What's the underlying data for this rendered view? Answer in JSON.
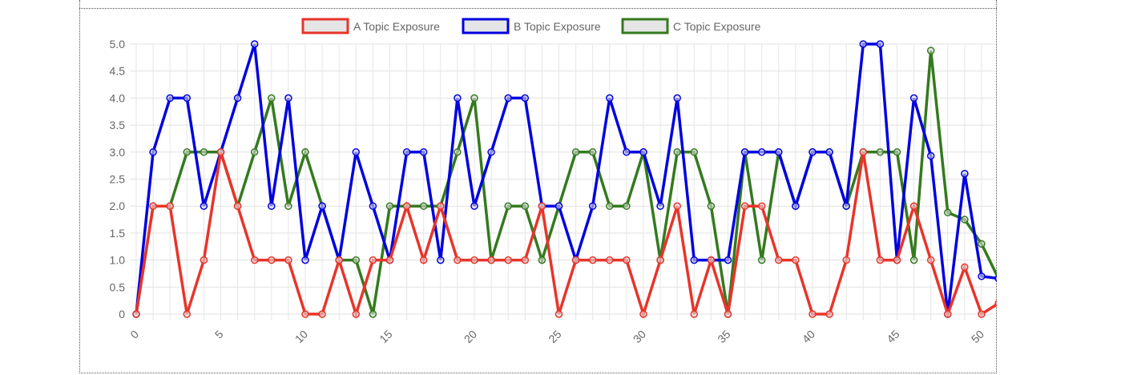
{
  "chart_data": {
    "type": "line",
    "title": "",
    "xlabel": "",
    "ylabel": "",
    "x": [
      0,
      1,
      2,
      3,
      4,
      5,
      6,
      7,
      8,
      9,
      10,
      11,
      12,
      13,
      14,
      15,
      16,
      17,
      18,
      19,
      20,
      21,
      22,
      23,
      24,
      25,
      26,
      27,
      28,
      29,
      30,
      31,
      32,
      33,
      34,
      35,
      36,
      37,
      38,
      39,
      40,
      41,
      42,
      43,
      44,
      45,
      46,
      47,
      48,
      49,
      50,
      51
    ],
    "xticks": [
      0,
      5,
      10,
      15,
      20,
      25,
      30,
      35,
      40,
      45,
      50
    ],
    "yticks": [
      0,
      0.5,
      1.0,
      1.5,
      2.0,
      2.5,
      3.0,
      3.5,
      4.0,
      4.5,
      5.0
    ],
    "ytick_labels": [
      "0",
      "0.5",
      "1.0",
      "1.5",
      "2.0",
      "2.5",
      "3.0",
      "3.5",
      "4.0",
      "4.5",
      "5.0"
    ],
    "xlim": [
      0,
      51
    ],
    "ylim": [
      0,
      5
    ],
    "grid": true,
    "legend_position": "top-center",
    "series": [
      {
        "name": "A Topic Exposure",
        "color": "#e8342a",
        "values": [
          0,
          2,
          2,
          0,
          1,
          3,
          2,
          1,
          1,
          1,
          0,
          0,
          1,
          0,
          1,
          1,
          2,
          1,
          2,
          1,
          1,
          1,
          1,
          1,
          2,
          0,
          1,
          1,
          1,
          1,
          0,
          1,
          2,
          0,
          1,
          0,
          2,
          2,
          1,
          1,
          0,
          0,
          1,
          3,
          1,
          1,
          2,
          1,
          0,
          0.87,
          0,
          0.2
        ]
      },
      {
        "name": "B Topic Exposure",
        "color": "#0000e0",
        "values": [
          0,
          3,
          4,
          4,
          2,
          3,
          4,
          5,
          2,
          4,
          1,
          2,
          1,
          3,
          2,
          1,
          3,
          3,
          1,
          4,
          2,
          3,
          4,
          4,
          2,
          2,
          1,
          2,
          4,
          3,
          3,
          2,
          4,
          1,
          1,
          1,
          3,
          3,
          3,
          2,
          3,
          3,
          2,
          5,
          5,
          1,
          4,
          2.93,
          0,
          2.6,
          0.7,
          0.66
        ]
      },
      {
        "name": "C Topic Exposure",
        "color": "#347a1e",
        "values": [
          0,
          2,
          2,
          3,
          3,
          3,
          2,
          3,
          4,
          2,
          3,
          2,
          1,
          1,
          0,
          2,
          2,
          2,
          2,
          3,
          4,
          1,
          2,
          2,
          1,
          2,
          3,
          3,
          2,
          2,
          3,
          1,
          3,
          3,
          2,
          0,
          3,
          1,
          3,
          2,
          3,
          3,
          2,
          3,
          3,
          3,
          1,
          4.88,
          1.88,
          1.75,
          1.3,
          0.66
        ]
      }
    ]
  }
}
